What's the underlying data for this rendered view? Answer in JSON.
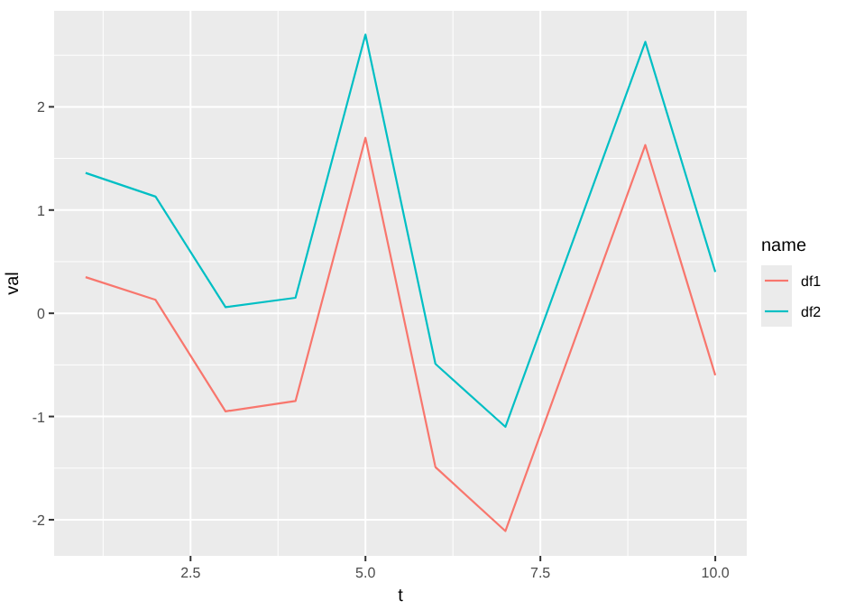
{
  "chart_data": {
    "type": "line",
    "xlabel": "t",
    "ylabel": "val",
    "legend_title": "name",
    "legend": "right",
    "grid": true,
    "xlim": [
      0.55,
      10.45
    ],
    "ylim": [
      -2.35,
      2.93
    ],
    "xticks": [
      {
        "value": 2.5,
        "label": "2.5"
      },
      {
        "value": 5,
        "label": "5.0"
      },
      {
        "value": 7.5,
        "label": "7.5"
      },
      {
        "value": 10,
        "label": "10.0"
      }
    ],
    "yticks": [
      -2,
      -1,
      0,
      1,
      2
    ],
    "x": [
      1,
      2,
      3,
      4,
      5,
      6,
      7,
      9,
      10
    ],
    "series": [
      {
        "name": "df1",
        "color": "#f8766d",
        "values": [
          0.35,
          0.13,
          -0.95,
          -0.85,
          1.7,
          -1.49,
          -2.11,
          1.63,
          -0.6
        ]
      },
      {
        "name": "df2",
        "color": "#00bfc4",
        "values": [
          1.36,
          1.13,
          0.06,
          0.15,
          2.7,
          -0.49,
          -1.1,
          2.63,
          0.4
        ]
      }
    ]
  }
}
